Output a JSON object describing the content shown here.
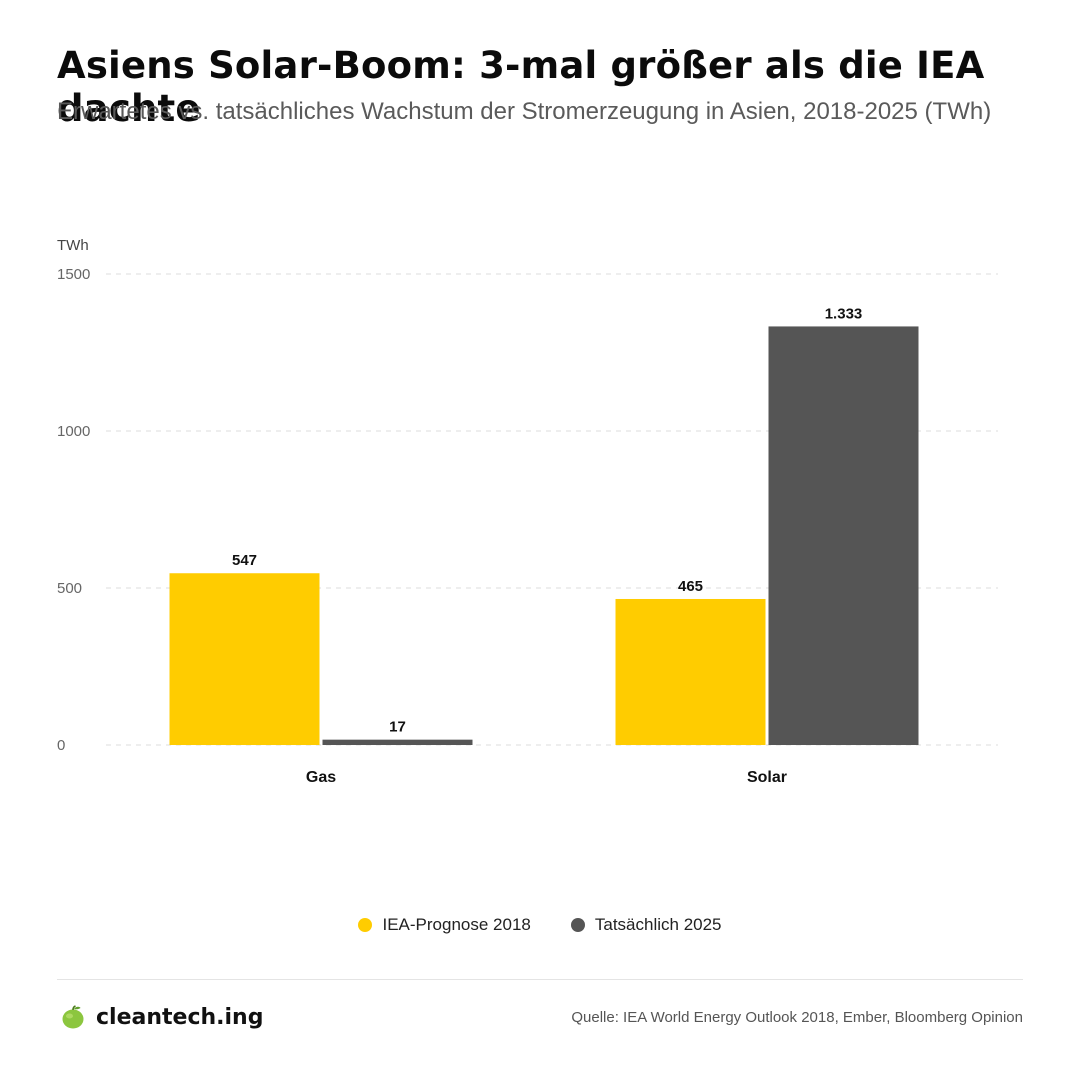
{
  "header": {
    "title": "Asiens Solar-Boom: 3-mal größer als die IEA dachte",
    "subtitle": "Erwartetes vs. tatsächliches Wachstum der Stromerzeugung in Asien, 2018-2025 (TWh)"
  },
  "chart_data": {
    "type": "bar",
    "categories": [
      "Gas",
      "Solar"
    ],
    "series": [
      {
        "name": "IEA-Prognose 2018",
        "values": [
          547,
          465
        ],
        "labels": [
          "547",
          "465"
        ],
        "color": "#FFCC00"
      },
      {
        "name": "Tatsächlich 2025",
        "values": [
          17,
          1333
        ],
        "labels": [
          "17",
          "1.333"
        ],
        "color": "#555555"
      }
    ],
    "ylabel": "TWh",
    "ylim": [
      0,
      1500
    ],
    "yticks": [
      0,
      500,
      1000,
      1500
    ],
    "grid": true,
    "legend_position": "bottom-center"
  },
  "footer": {
    "brand": "cleantech.ing",
    "source": "Quelle: IEA World Energy Outlook 2018, Ember, Bloomberg Opinion",
    "logo_icon": "green-apple-icon"
  }
}
